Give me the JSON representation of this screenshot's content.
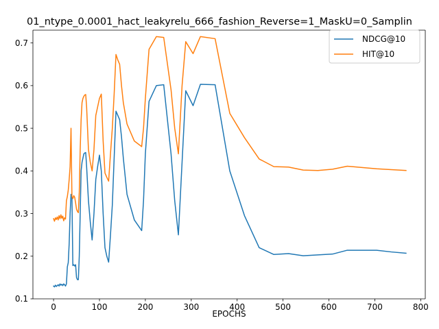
{
  "chart_data": {
    "type": "line",
    "title": "01_ntype_0.0001_hact_leakyrelu_666_fashion_Reverse=1_MaskU=0_Samplin",
    "xlabel": "EPOCHS",
    "ylabel": "",
    "xlim": [
      -45,
      810
    ],
    "ylim": [
      0.1,
      0.73
    ],
    "xticks": [
      0,
      100,
      200,
      300,
      400,
      500,
      600,
      700,
      800
    ],
    "yticks": [
      0.1,
      0.2,
      0.3,
      0.4,
      0.5,
      0.6,
      0.7
    ],
    "x_tick_labels": [
      "0",
      "100",
      "200",
      "300",
      "400",
      "500",
      "600",
      "700",
      "800"
    ],
    "y_tick_labels": [
      "0.1",
      "0.2",
      "0.3",
      "0.4",
      "0.5",
      "0.6",
      "0.7"
    ],
    "legend_position": "top-right",
    "grid": false,
    "series": [
      {
        "name": "NDCG@10",
        "color": "#1f77b4",
        "x": [
          0,
          2,
          4,
          6,
          8,
          10,
          12,
          14,
          16,
          18,
          20,
          22,
          24,
          26,
          28,
          30,
          32,
          34,
          36,
          38,
          40,
          42,
          44,
          46,
          48,
          50,
          52,
          54,
          56,
          58,
          60,
          62,
          64,
          66,
          68,
          70,
          72,
          76,
          80,
          84,
          88,
          92,
          96,
          100,
          104,
          108,
          112,
          116,
          120,
          124,
          128,
          132,
          136,
          140,
          144,
          148,
          152,
          160,
          176,
          192,
          196,
          200,
          208,
          224,
          240,
          256,
          264,
          272,
          280,
          288,
          304,
          320,
          352,
          384,
          416,
          448,
          480,
          512,
          544,
          576,
          608,
          640,
          672,
          704,
          736,
          768
        ],
        "y": [
          0.13,
          0.128,
          0.132,
          0.129,
          0.131,
          0.133,
          0.13,
          0.135,
          0.132,
          0.134,
          0.131,
          0.135,
          0.133,
          0.13,
          0.135,
          0.175,
          0.185,
          0.23,
          0.3,
          0.345,
          0.34,
          0.178,
          0.18,
          0.177,
          0.18,
          0.15,
          0.145,
          0.145,
          0.2,
          0.3,
          0.4,
          0.42,
          0.43,
          0.44,
          0.442,
          0.443,
          0.41,
          0.33,
          0.28,
          0.238,
          0.3,
          0.38,
          0.41,
          0.437,
          0.4,
          0.3,
          0.22,
          0.2,
          0.186,
          0.25,
          0.32,
          0.43,
          0.54,
          0.53,
          0.52,
          0.48,
          0.43,
          0.345,
          0.285,
          0.26,
          0.33,
          0.44,
          0.563,
          0.6,
          0.602,
          0.44,
          0.33,
          0.25,
          0.42,
          0.588,
          0.553,
          0.603,
          0.602,
          0.4,
          0.295,
          0.22,
          0.204,
          0.206,
          0.201,
          0.203,
          0.205,
          0.214,
          0.214,
          0.214,
          0.21,
          0.207
        ]
      },
      {
        "name": "HIT@10",
        "color": "#ff7f0e",
        "x": [
          0,
          2,
          4,
          6,
          8,
          10,
          12,
          14,
          16,
          18,
          20,
          22,
          24,
          26,
          28,
          30,
          32,
          34,
          36,
          38,
          40,
          42,
          44,
          46,
          48,
          50,
          52,
          54,
          56,
          58,
          60,
          62,
          64,
          66,
          68,
          70,
          72,
          76,
          80,
          84,
          88,
          92,
          96,
          100,
          104,
          108,
          112,
          116,
          120,
          124,
          128,
          132,
          136,
          140,
          144,
          148,
          152,
          160,
          176,
          192,
          196,
          200,
          208,
          224,
          240,
          256,
          264,
          272,
          280,
          288,
          304,
          320,
          352,
          384,
          416,
          448,
          480,
          512,
          544,
          576,
          608,
          640,
          672,
          704,
          736,
          768
        ],
        "y": [
          0.288,
          0.282,
          0.29,
          0.286,
          0.292,
          0.285,
          0.295,
          0.288,
          0.297,
          0.289,
          0.294,
          0.283,
          0.29,
          0.287,
          0.33,
          0.34,
          0.355,
          0.38,
          0.41,
          0.5,
          0.34,
          0.335,
          0.342,
          0.338,
          0.325,
          0.31,
          0.305,
          0.302,
          0.35,
          0.45,
          0.52,
          0.56,
          0.57,
          0.575,
          0.578,
          0.579,
          0.55,
          0.45,
          0.42,
          0.4,
          0.45,
          0.53,
          0.55,
          0.57,
          0.58,
          0.47,
          0.395,
          0.385,
          0.376,
          0.44,
          0.5,
          0.58,
          0.673,
          0.66,
          0.65,
          0.6,
          0.56,
          0.51,
          0.47,
          0.457,
          0.5,
          0.57,
          0.685,
          0.715,
          0.713,
          0.59,
          0.5,
          0.44,
          0.6,
          0.703,
          0.675,
          0.715,
          0.71,
          0.535,
          0.478,
          0.428,
          0.41,
          0.409,
          0.402,
          0.401,
          0.404,
          0.411,
          0.408,
          0.405,
          0.403,
          0.401
        ]
      }
    ]
  }
}
